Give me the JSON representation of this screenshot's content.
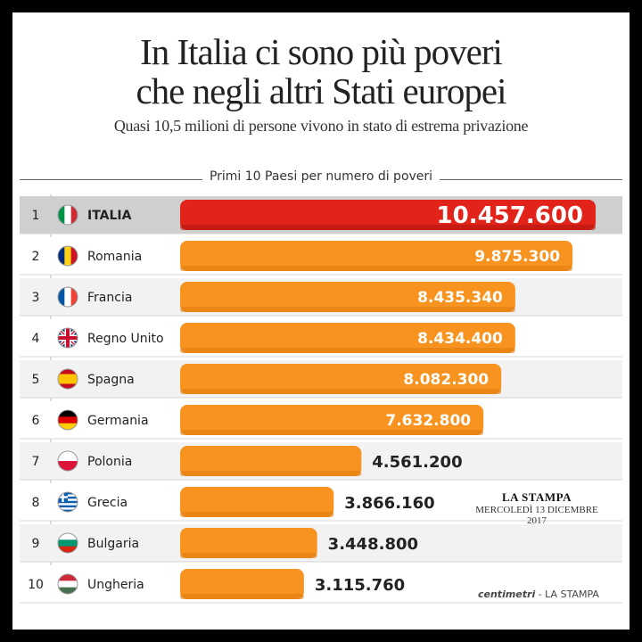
{
  "header": {
    "title_line1": "In Italia ci sono più poveri",
    "title_line2": "che negli altri Stati europei",
    "subtitle": "Quasi 10,5 milioni di persone vivono in stato di estrema privazione"
  },
  "chart_data": {
    "type": "bar",
    "orientation": "horizontal",
    "title": "Primi 10 Paesi per numero di poveri",
    "ranks": [
      "1",
      "2",
      "3",
      "4",
      "5",
      "6",
      "7",
      "8",
      "9",
      "10"
    ],
    "categories": [
      "ITALIA",
      "Romania",
      "Francia",
      "Regno Unito",
      "Spagna",
      "Germania",
      "Polonia",
      "Grecia",
      "Bulgaria",
      "Ungheria"
    ],
    "values": [
      10457600,
      9875300,
      8435340,
      8434400,
      8082300,
      7632800,
      4561200,
      3866160,
      3448800,
      3115760
    ],
    "value_labels": [
      "10.457.600",
      "9.875.300",
      "8.435.340",
      "8.434.400",
      "8.082.300",
      "7.632.800",
      "4.561.200",
      "3.866.160",
      "3.448.800",
      "3.115.760"
    ],
    "highlight_color": "#e2231a",
    "bar_color": "#f7931e",
    "grid": false,
    "legend": "none"
  },
  "source": {
    "name": "LA STAMPA",
    "date": "MERCOLEDÌ 13 DICEMBRE 2017"
  },
  "credit": {
    "brand": "centimetri",
    "suffix": " - LA STAMPA"
  },
  "flags": {
    "ITALIA": "italy-flag-icon",
    "Romania": "romania-flag-icon",
    "Francia": "france-flag-icon",
    "Regno Unito": "uk-flag-icon",
    "Spagna": "spain-flag-icon",
    "Germania": "germany-flag-icon",
    "Polonia": "poland-flag-icon",
    "Grecia": "greece-flag-icon",
    "Bulgaria": "bulgaria-flag-icon",
    "Ungheria": "hungary-flag-icon"
  }
}
